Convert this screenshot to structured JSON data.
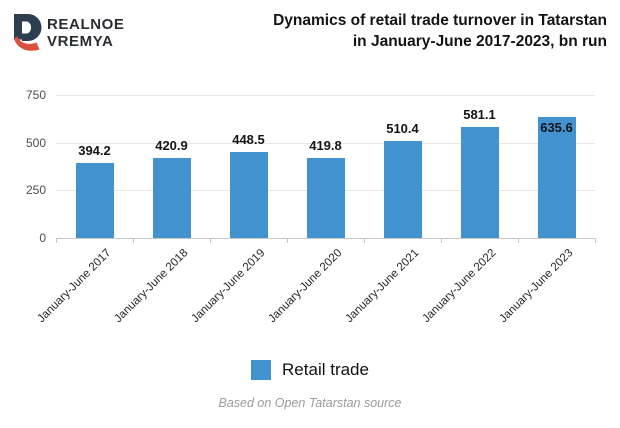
{
  "brand": {
    "name_line1": "REALNOE",
    "name_line2": "VREMYA",
    "logo_colors": {
      "navy": "#2d3e50",
      "red": "#d9503e"
    }
  },
  "header": {
    "title_line1": "Dynamics of retail trade turnover in Tatarstan",
    "title_line2": "in January-June 2017-2023, bn run"
  },
  "chart_data": {
    "type": "bar",
    "title": "Dynamics of retail trade turnover in Tatarstan in January-June 2017-2023, bn run",
    "categories": [
      "January-June 2017",
      "January-June 2018",
      "January-June 2019",
      "January-June 2020",
      "January-June 2021",
      "January-June 2022",
      "January-June 2023"
    ],
    "values": [
      394.2,
      420.9,
      448.5,
      419.8,
      510.4,
      581.1,
      635.6
    ],
    "value_label_placement": [
      "above",
      "above",
      "above",
      "above",
      "above",
      "above",
      "inside"
    ],
    "series_name": "Retail trade",
    "xlabel": "",
    "ylabel": "",
    "ylim": [
      0,
      750
    ],
    "yticks": [
      0,
      250,
      500,
      750
    ],
    "grid": true,
    "legend_position": "bottom",
    "bar_color": "#4392d0"
  },
  "legend": {
    "label": "Retail trade",
    "swatch_color": "#4392d0"
  },
  "footer": {
    "source_note": "Based on Open Tatarstan source"
  }
}
